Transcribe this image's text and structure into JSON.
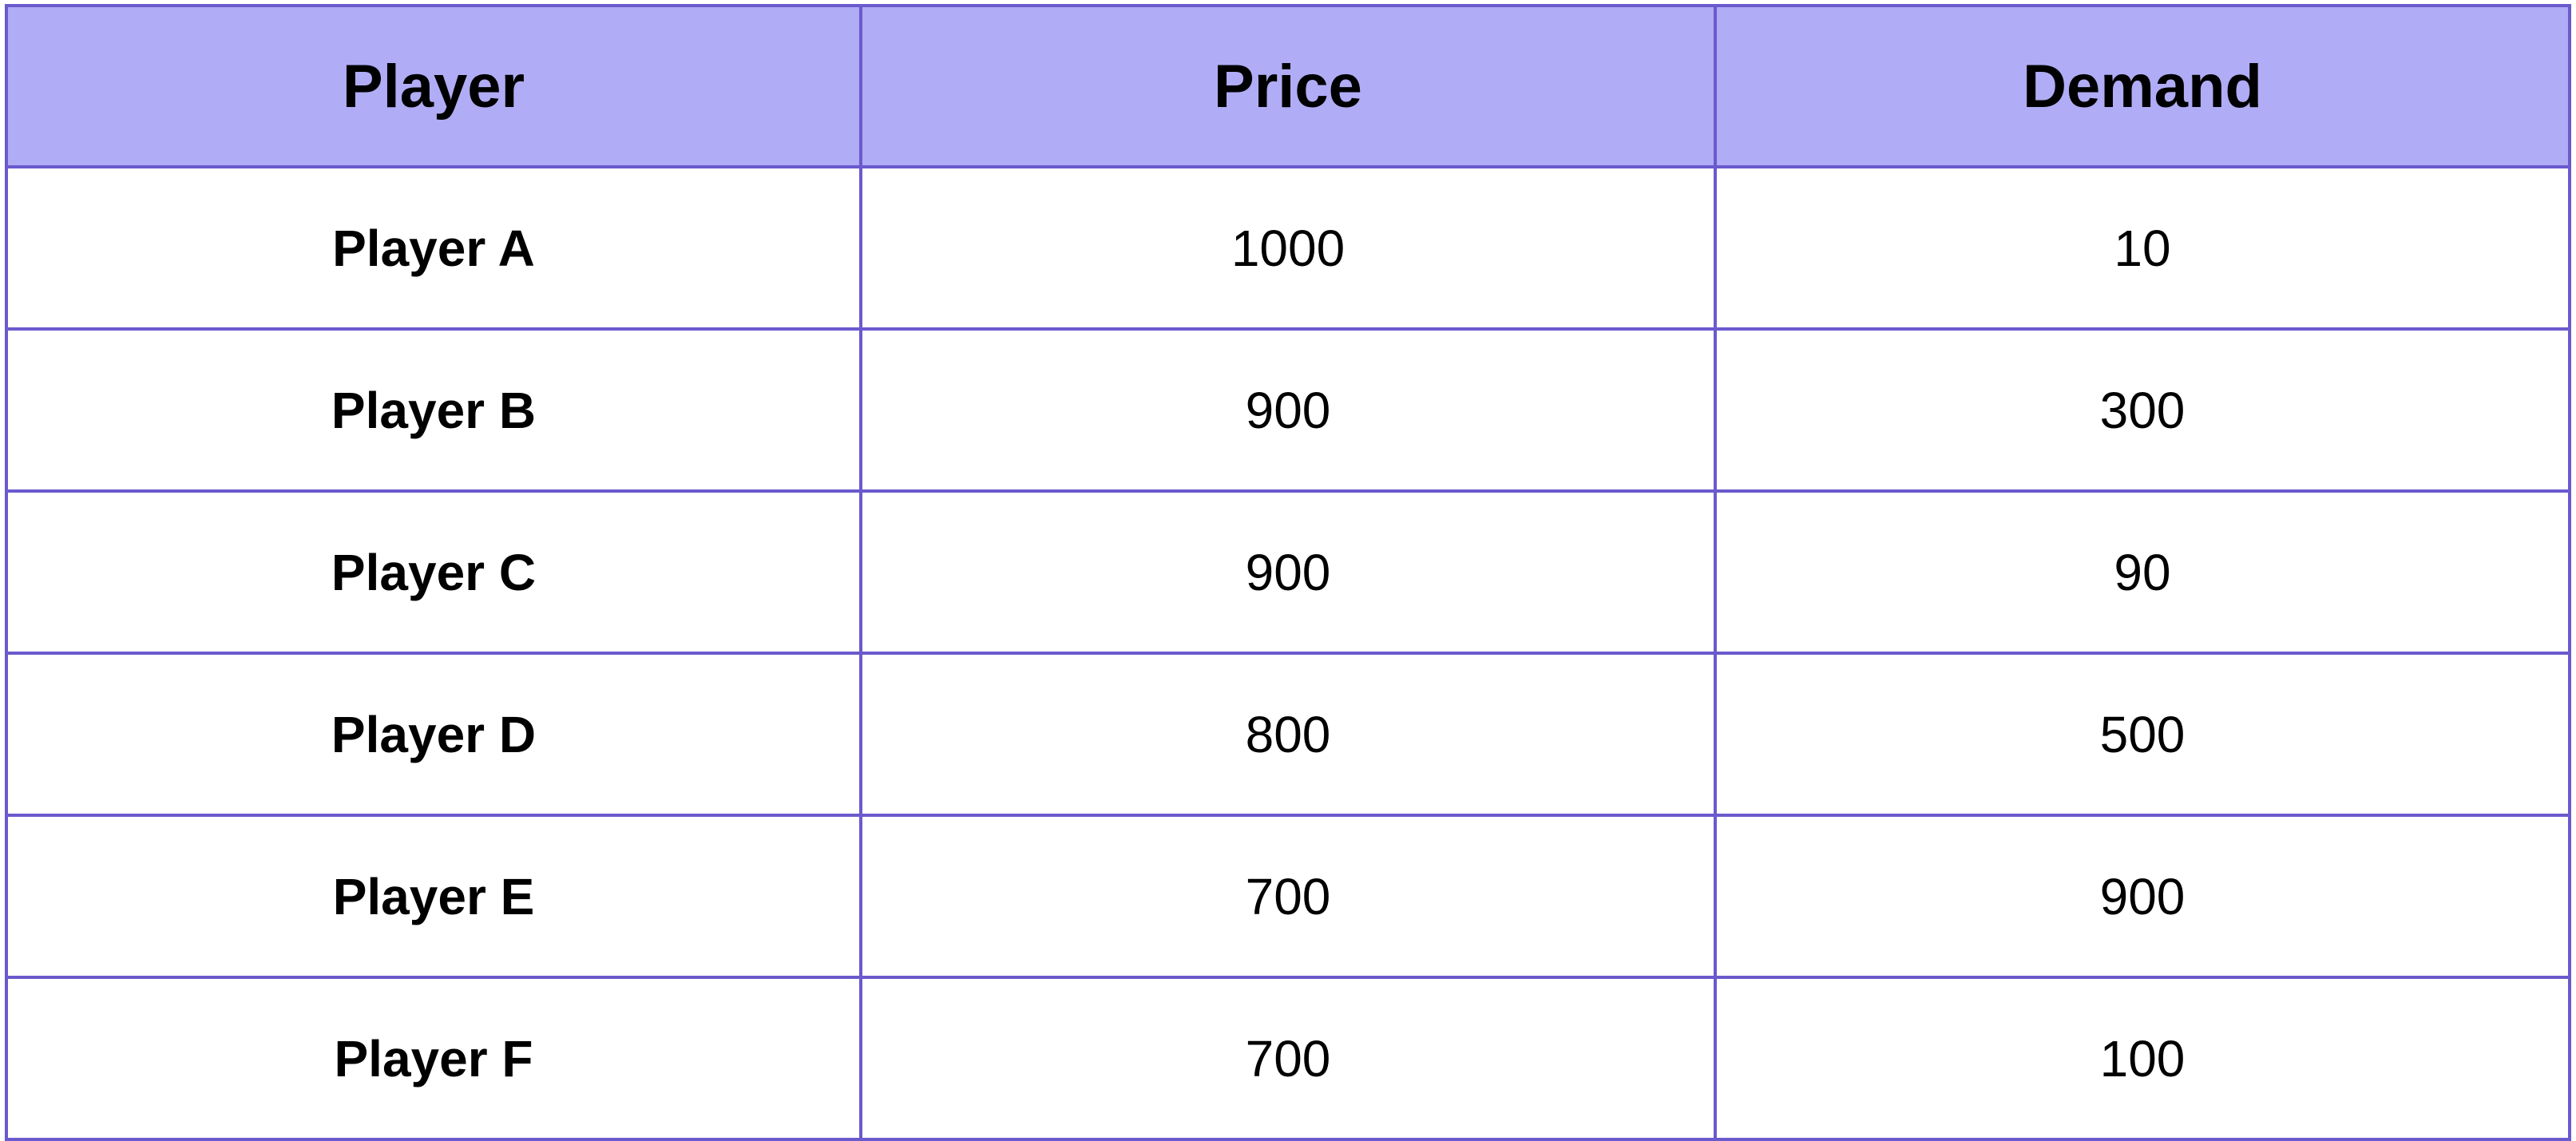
{
  "chart_data": {
    "type": "table",
    "columns": [
      "Player",
      "Price",
      "Demand"
    ],
    "rows": [
      [
        "Player A",
        "1000",
        "10"
      ],
      [
        "Player B",
        "900",
        "300"
      ],
      [
        "Player C",
        "900",
        "90"
      ],
      [
        "Player D",
        "800",
        "500"
      ],
      [
        "Player E",
        "700",
        "900"
      ],
      [
        "Player F",
        "700",
        "100"
      ]
    ]
  },
  "colors": {
    "header_bg": "#b0acf5",
    "border": "#6a5acd",
    "text": "#000000"
  }
}
